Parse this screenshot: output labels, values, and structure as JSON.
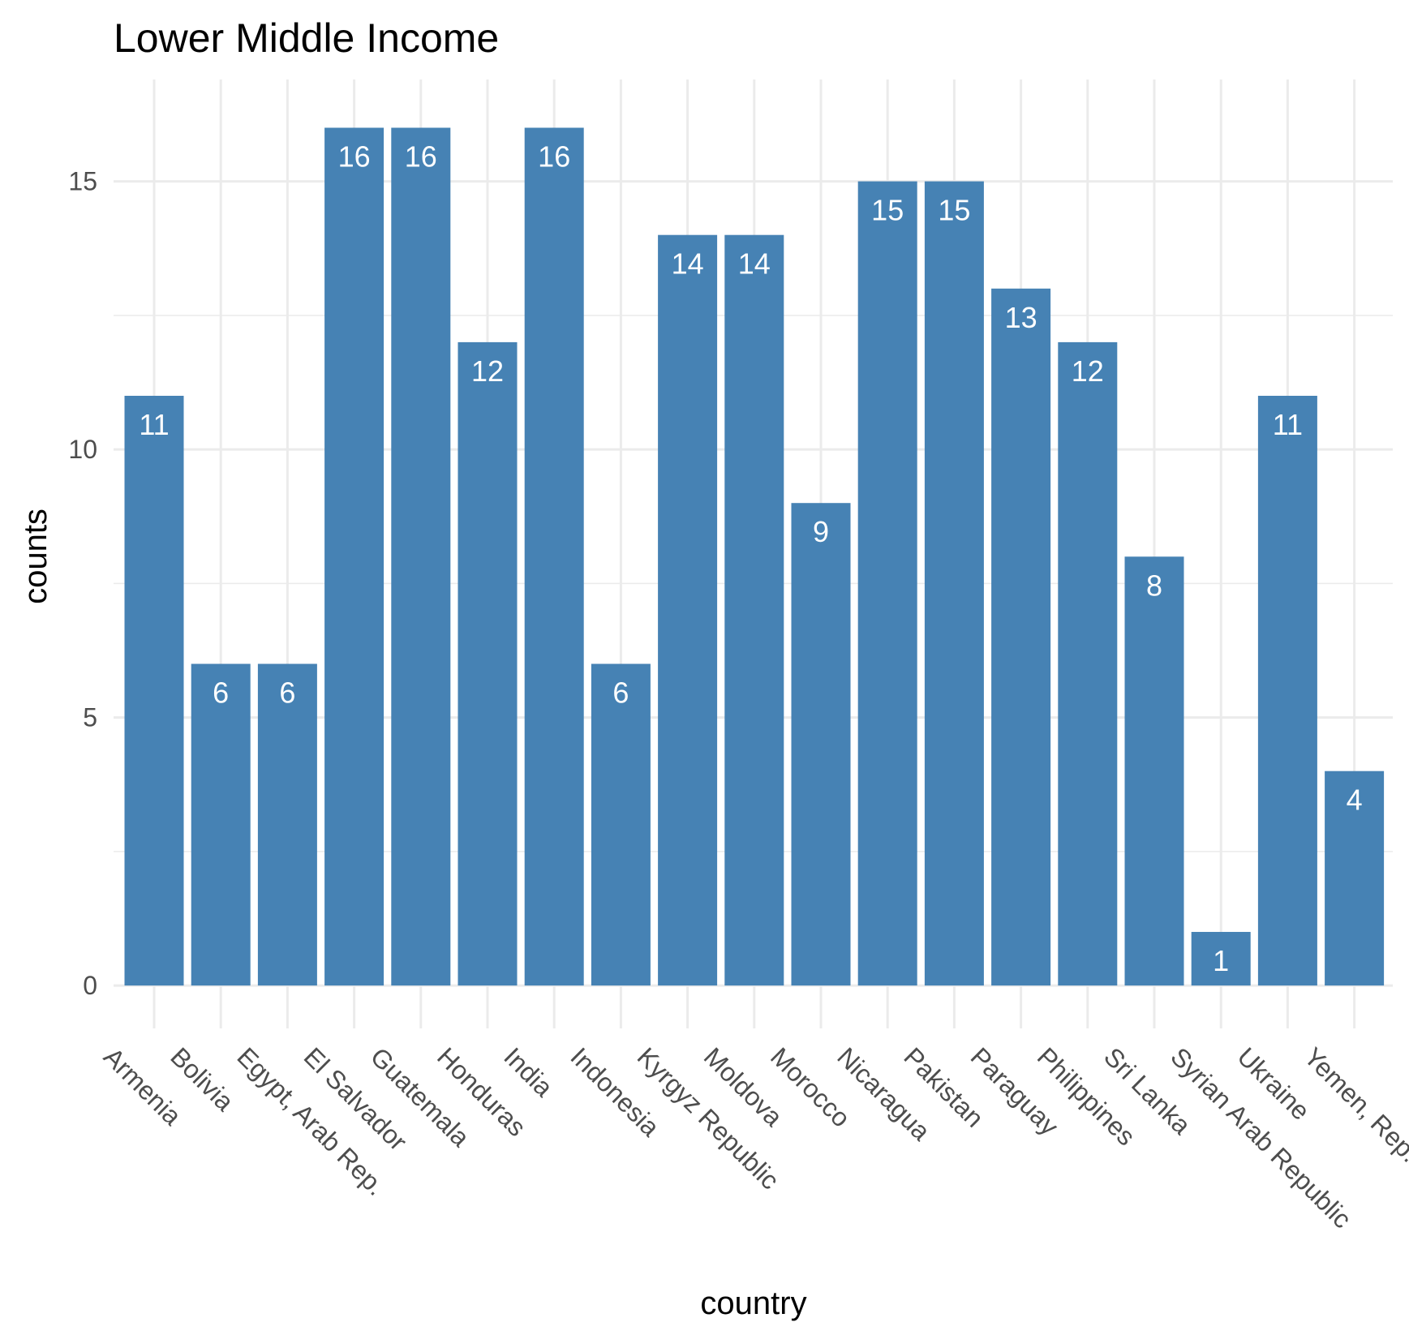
{
  "chart_data": {
    "type": "bar",
    "title": "Lower Middle Income",
    "xlabel": "country",
    "ylabel": "counts",
    "categories": [
      "Armenia",
      "Bolivia",
      "Egypt, Arab Rep.",
      "El Salvador",
      "Guatemala",
      "Honduras",
      "India",
      "Indonesia",
      "Kyrgyz Republic",
      "Moldova",
      "Morocco",
      "Nicaragua",
      "Pakistan",
      "Paraguay",
      "Philippines",
      "Sri Lanka",
      "Syrian Arab Republic",
      "Ukraine",
      "Yemen, Rep."
    ],
    "values": [
      11,
      6,
      6,
      16,
      16,
      12,
      16,
      6,
      14,
      14,
      9,
      15,
      15,
      13,
      12,
      8,
      1,
      11,
      4
    ],
    "ylim": [
      -0.8,
      16.9
    ],
    "yticks": [
      0,
      5,
      10,
      15
    ],
    "ytick_labels": [
      "0",
      "5",
      "10",
      "15"
    ],
    "grid": true,
    "bar_color": "#4682B4",
    "label_color": "#ffffff",
    "grid_color": "#ebebeb"
  }
}
